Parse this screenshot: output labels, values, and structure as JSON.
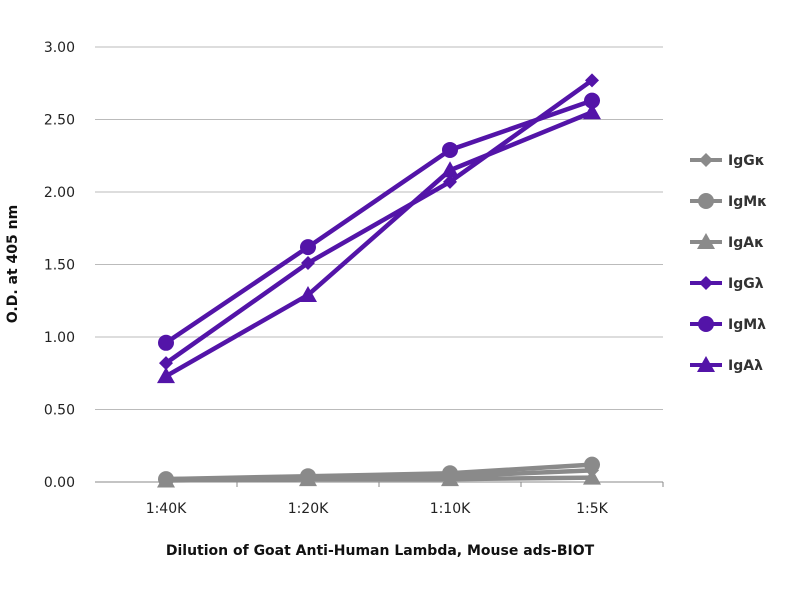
{
  "chart_data": {
    "type": "line",
    "title": "",
    "xlabel": "Dilution of Goat Anti-Human Lambda, Mouse ads-BIOT",
    "ylabel": "O.D. at 405 nm",
    "categories": [
      "1:40K",
      "1:20K",
      "1:10K",
      "1:5K"
    ],
    "ylim": [
      0,
      3
    ],
    "yticks": [
      "0.00",
      "0.50",
      "1.00",
      "1.50",
      "2.00",
      "2.50",
      "3.00"
    ],
    "grid": true,
    "legend_position": "right",
    "series": [
      {
        "name": "IgGκ",
        "marker": "diamond",
        "color": "#8a8a8a",
        "values": [
          0.02,
          0.03,
          0.04,
          0.08
        ]
      },
      {
        "name": "IgMκ",
        "marker": "circle",
        "color": "#8a8a8a",
        "values": [
          0.02,
          0.04,
          0.06,
          0.12
        ]
      },
      {
        "name": "IgAκ",
        "marker": "triangle",
        "color": "#8a8a8a",
        "values": [
          0.01,
          0.02,
          0.02,
          0.03
        ]
      },
      {
        "name": "IgGλ",
        "marker": "diamond",
        "color": "#5314a8",
        "values": [
          0.82,
          1.51,
          2.07,
          2.77
        ]
      },
      {
        "name": "IgMλ",
        "marker": "circle",
        "color": "#5314a8",
        "values": [
          0.96,
          1.62,
          2.29,
          2.63
        ]
      },
      {
        "name": "IgAλ",
        "marker": "triangle",
        "color": "#5314a8",
        "values": [
          0.73,
          1.29,
          2.15,
          2.55
        ]
      }
    ]
  }
}
